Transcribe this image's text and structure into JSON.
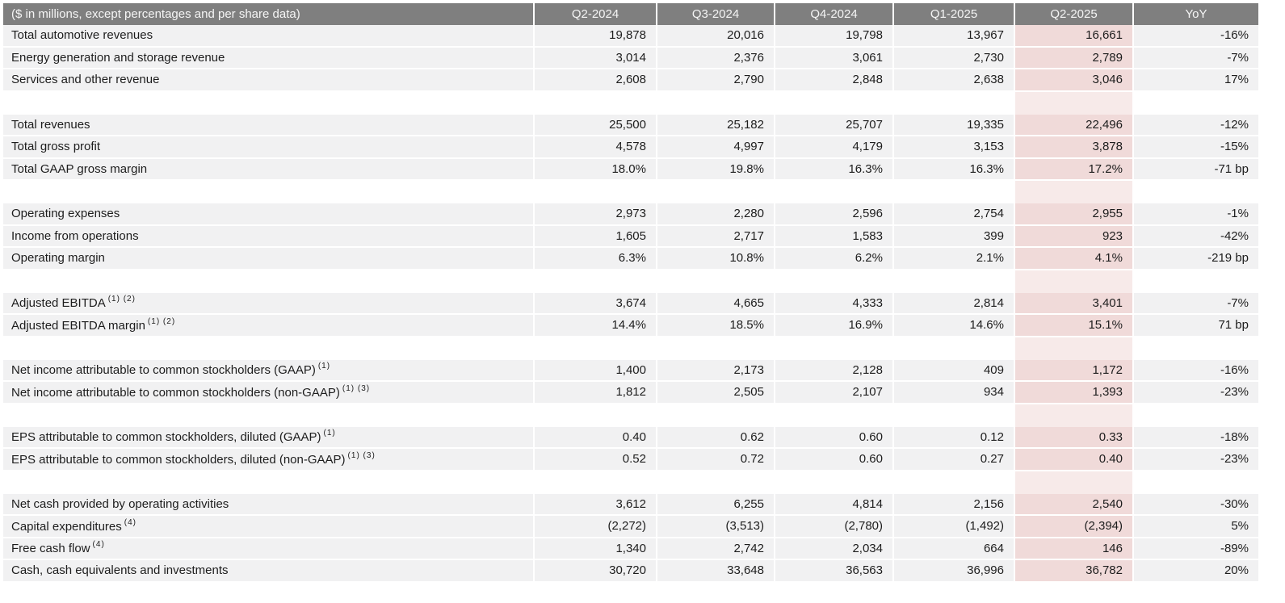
{
  "table": {
    "header": {
      "label": "($ in millions, except percentages and per share data)",
      "columns": [
        "Q2-2024",
        "Q3-2024",
        "Q4-2024",
        "Q1-2025",
        "Q2-2025",
        "YoY"
      ]
    },
    "highlighted_column": "Q2-2025",
    "groups": [
      {
        "rows": [
          {
            "label": "Total automotive revenues",
            "sup": "",
            "values": [
              "19,878",
              "20,016",
              "19,798",
              "13,967",
              "16,661",
              "-16%"
            ]
          },
          {
            "label": "Energy generation and storage revenue",
            "sup": "",
            "values": [
              "3,014",
              "2,376",
              "3,061",
              "2,730",
              "2,789",
              "-7%"
            ]
          },
          {
            "label": "Services and other revenue",
            "sup": "",
            "values": [
              "2,608",
              "2,790",
              "2,848",
              "2,638",
              "3,046",
              "17%"
            ]
          }
        ]
      },
      {
        "rows": [
          {
            "label": "Total revenues",
            "sup": "",
            "values": [
              "25,500",
              "25,182",
              "25,707",
              "19,335",
              "22,496",
              "-12%"
            ]
          },
          {
            "label": "Total gross profit",
            "sup": "",
            "values": [
              "4,578",
              "4,997",
              "4,179",
              "3,153",
              "3,878",
              "-15%"
            ]
          },
          {
            "label": "Total GAAP gross margin",
            "sup": "",
            "values": [
              "18.0%",
              "19.8%",
              "16.3%",
              "16.3%",
              "17.2%",
              "-71 bp"
            ]
          }
        ]
      },
      {
        "rows": [
          {
            "label": "Operating expenses",
            "sup": "",
            "values": [
              "2,973",
              "2,280",
              "2,596",
              "2,754",
              "2,955",
              "-1%"
            ]
          },
          {
            "label": "Income from operations",
            "sup": "",
            "values": [
              "1,605",
              "2,717",
              "1,583",
              "399",
              "923",
              "-42%"
            ]
          },
          {
            "label": "Operating margin",
            "sup": "",
            "values": [
              "6.3%",
              "10.8%",
              "6.2%",
              "2.1%",
              "4.1%",
              "-219 bp"
            ]
          }
        ]
      },
      {
        "rows": [
          {
            "label": "Adjusted EBITDA",
            "sup": "(1) (2)",
            "values": [
              "3,674",
              "4,665",
              "4,333",
              "2,814",
              "3,401",
              "-7%"
            ]
          },
          {
            "label": "Adjusted EBITDA margin",
            "sup": "(1) (2)",
            "values": [
              "14.4%",
              "18.5%",
              "16.9%",
              "14.6%",
              "15.1%",
              "71 bp"
            ]
          }
        ]
      },
      {
        "rows": [
          {
            "label": "Net income attributable to common stockholders (GAAP)",
            "sup": "(1)",
            "values": [
              "1,400",
              "2,173",
              "2,128",
              "409",
              "1,172",
              "-16%"
            ]
          },
          {
            "label": "Net income attributable to common stockholders (non-GAAP)",
            "sup": "(1) (3)",
            "values": [
              "1,812",
              "2,505",
              "2,107",
              "934",
              "1,393",
              "-23%"
            ]
          }
        ]
      },
      {
        "rows": [
          {
            "label": "EPS attributable to common stockholders, diluted (GAAP)",
            "sup": "(1)",
            "values": [
              "0.40",
              "0.62",
              "0.60",
              "0.12",
              "0.33",
              "-18%"
            ]
          },
          {
            "label": "EPS attributable to common stockholders, diluted (non-GAAP)",
            "sup": "(1) (3)",
            "values": [
              "0.52",
              "0.72",
              "0.60",
              "0.27",
              "0.40",
              "-23%"
            ]
          }
        ]
      },
      {
        "rows": [
          {
            "label": "Net cash provided by operating activities",
            "sup": "",
            "values": [
              "3,612",
              "6,255",
              "4,814",
              "2,156",
              "2,540",
              "-30%"
            ]
          },
          {
            "label": "Capital expenditures",
            "sup": "(4)",
            "values": [
              "(2,272)",
              "(3,513)",
              "(2,780)",
              "(1,492)",
              "(2,394)",
              "5%"
            ]
          },
          {
            "label": "Free cash flow",
            "sup": "(4)",
            "values": [
              "1,340",
              "2,742",
              "2,034",
              "664",
              "146",
              "-89%"
            ]
          },
          {
            "label": "Cash, cash equivalents and investments",
            "sup": "",
            "values": [
              "30,720",
              "33,648",
              "36,563",
              "36,996",
              "36,782",
              "20%"
            ]
          }
        ]
      }
    ],
    "colors": {
      "header_bg": "#7f7f7f",
      "header_text": "#f5f5f5",
      "row_bg": "#f1f1f2",
      "highlight_bg": "#f0dad9",
      "highlight_gap_bg": "#f7eae9",
      "text": "#1d1d1d"
    }
  }
}
